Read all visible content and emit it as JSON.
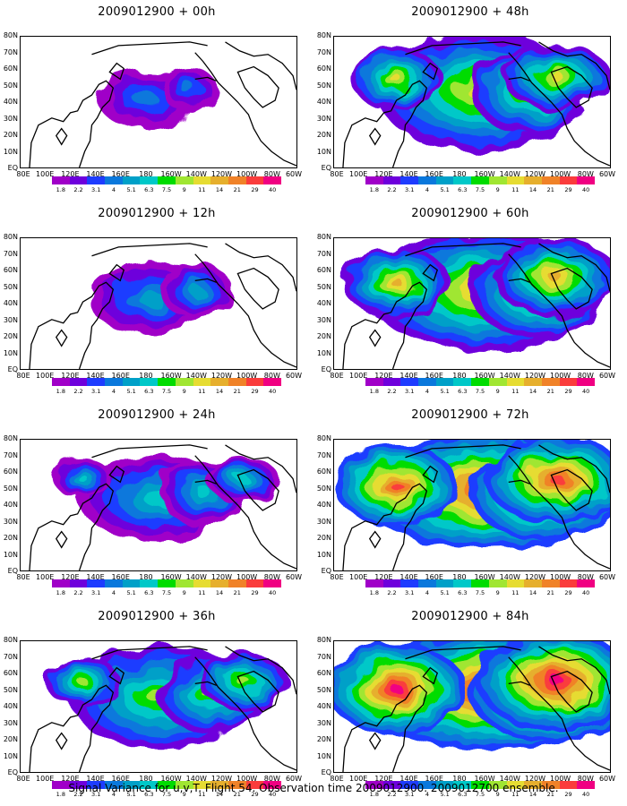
{
  "panels": [
    {
      "title": "2009012900 + 00h",
      "level": 0
    },
    {
      "title": "2009012900 + 48h",
      "level": 4
    },
    {
      "title": "2009012900 + 12h",
      "level": 1
    },
    {
      "title": "2009012900 + 60h",
      "level": 5
    },
    {
      "title": "2009012900 + 24h",
      "level": 2
    },
    {
      "title": "2009012900 + 72h",
      "level": 6
    },
    {
      "title": "2009012900 + 36h",
      "level": 3
    },
    {
      "title": "2009012900 + 84h",
      "level": 7
    }
  ],
  "lat_labels": [
    "80N",
    "70N",
    "60N",
    "50N",
    "40N",
    "30N",
    "20N",
    "10N",
    "EQ"
  ],
  "lon_labels": [
    "80E",
    "100E",
    "120E",
    "140E",
    "160E",
    "180",
    "160W",
    "140W",
    "120W",
    "100W",
    "80W",
    "60W"
  ],
  "colorbar": {
    "colors": [
      "#a000c8",
      "#6e00dc",
      "#1e3cff",
      "#0a78dc",
      "#00a0c8",
      "#00c8c8",
      "#00dc00",
      "#a0e632",
      "#e6dc32",
      "#e6af2d",
      "#f08228",
      "#fa3c3c",
      "#f00082"
    ],
    "labels": [
      "1.8",
      "2.2",
      "3.1",
      "4",
      "5.1",
      "6.3",
      "7.5",
      "9",
      "11",
      "14",
      "21",
      "29",
      "40"
    ]
  },
  "footer": "Signal Variance for u,v,T. Flight 54. Observation time 2009012900. 2009012700 ensemble."
}
